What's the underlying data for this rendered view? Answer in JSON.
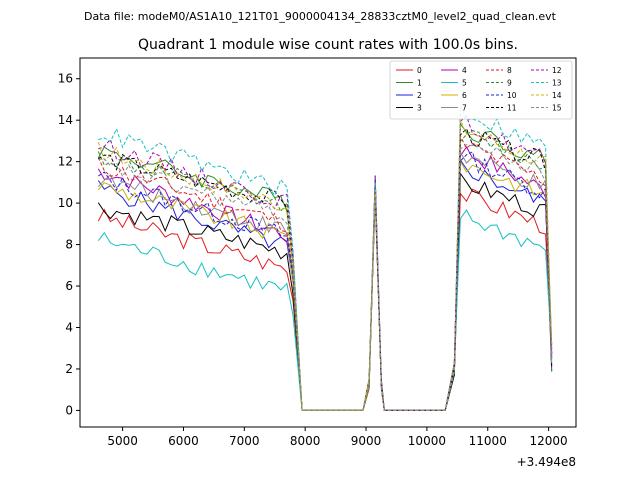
{
  "suptitle": "Data file: modeM0/AS1A10_121T01_9000004134_28833cztM0_level2_quad_clean.evt",
  "chart_data": {
    "type": "line",
    "title": "Quadrant 1 module wise count rates with 100.0s bins.",
    "xlabel": "",
    "ylabel": "",
    "x_offset_label": "+3.494e8",
    "xlim": [
      4300,
      12450
    ],
    "ylim": [
      -0.8,
      17
    ],
    "xticks": [
      5000,
      6000,
      7000,
      8000,
      9000,
      10000,
      11000,
      12000
    ],
    "yticks": [
      0,
      2,
      4,
      6,
      8,
      10,
      12,
      14,
      16
    ],
    "legend_position": "top-right",
    "x_segments": [
      {
        "start": 4600,
        "end": 7850,
        "step": 100
      },
      {
        "start": 7950,
        "end": 8950,
        "step": 100
      },
      {
        "start": 9050,
        "end": 9250,
        "step": 100
      },
      {
        "start": 9300,
        "end": 10350,
        "step": 100
      },
      {
        "start": 10450,
        "end": 12050,
        "step": 100
      }
    ],
    "series": [
      {
        "name": "0",
        "color": "#e31a1c",
        "dash": "solid",
        "level": 8.1,
        "drop": 1.6
      },
      {
        "name": "1",
        "color": "#2e8b2e",
        "dash": "solid",
        "level": 11.3,
        "drop": 1.6
      },
      {
        "name": "2",
        "color": "#1f1fdd",
        "dash": "solid",
        "level": 9.3,
        "drop": 1.8
      },
      {
        "name": "3",
        "color": "#000000",
        "dash": "solid",
        "level": 8.7,
        "drop": 1.4
      },
      {
        "name": "4",
        "color": "#b000b0",
        "dash": "solid",
        "level": 10.0,
        "drop": 2.0
      },
      {
        "name": "5",
        "color": "#17c0c0",
        "dash": "solid",
        "level": 7.0,
        "drop": 1.6
      },
      {
        "name": "6",
        "color": "#c8b400",
        "dash": "solid",
        "level": 9.6,
        "drop": 1.6
      },
      {
        "name": "7",
        "color": "#8a8a8a",
        "dash": "solid",
        "level": 9.9,
        "drop": 1.6
      },
      {
        "name": "8",
        "color": "#e31a1c",
        "dash": "dashed",
        "level": 10.4,
        "drop": 1.8
      },
      {
        "name": "9",
        "color": "#2e8b2e",
        "dash": "dashed",
        "level": 11.0,
        "drop": 1.6
      },
      {
        "name": "10",
        "color": "#1f1fdd",
        "dash": "dashed",
        "level": 9.8,
        "drop": 1.8
      },
      {
        "name": "11",
        "color": "#000000",
        "dash": "dashed",
        "level": 11.1,
        "drop": 1.4
      },
      {
        "name": "12",
        "color": "#b000b0",
        "dash": "dashed",
        "level": 11.4,
        "drop": 1.8
      },
      {
        "name": "13",
        "color": "#17c0c0",
        "dash": "dashed",
        "level": 12.0,
        "drop": 1.8
      },
      {
        "name": "14",
        "color": "#c8b400",
        "dash": "dashed",
        "level": 11.2,
        "drop": 1.7
      },
      {
        "name": "15",
        "color": "#8a8a8a",
        "dash": "dashed",
        "level": 10.6,
        "drop": 1.6
      }
    ]
  }
}
